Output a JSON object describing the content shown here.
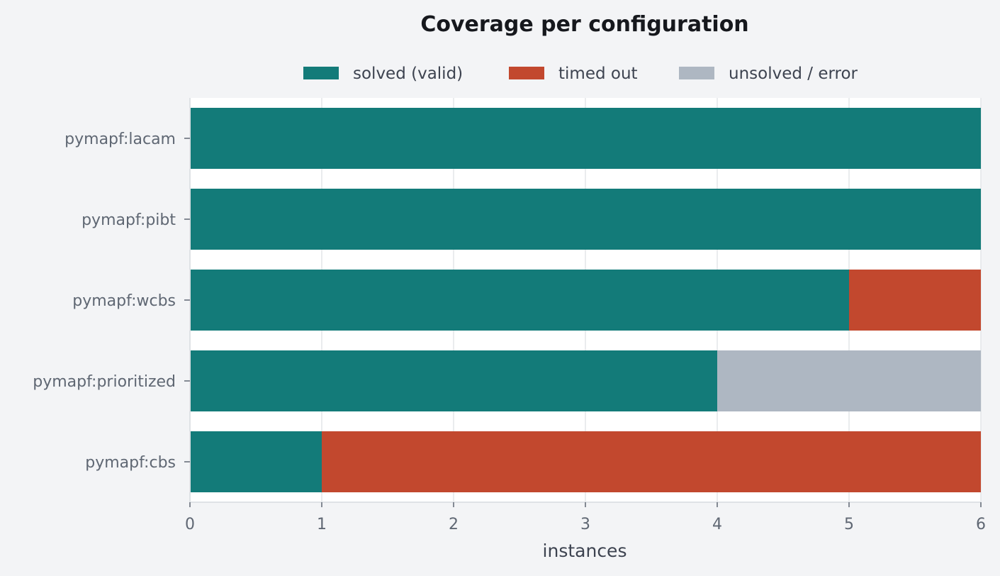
{
  "chart_data": {
    "type": "bar",
    "orientation": "horizontal",
    "stacked": true,
    "title": "Coverage per configuration",
    "xlabel": "instances",
    "ylabel": "",
    "xlim": [
      0,
      6
    ],
    "xticks": [
      "0",
      "1",
      "2",
      "3",
      "4",
      "5",
      "6"
    ],
    "categories": [
      "pymapf:lacam",
      "pymapf:pibt",
      "pymapf:wcbs",
      "pymapf:prioritized",
      "pymapf:cbs"
    ],
    "series": [
      {
        "name": "solved (valid)",
        "color": "#137b79",
        "values": [
          6,
          6,
          5,
          4,
          1
        ]
      },
      {
        "name": "timed out",
        "color": "#c2482e",
        "values": [
          0,
          0,
          1,
          0,
          5
        ]
      },
      {
        "name": "unsolved / error",
        "color": "#aeb7c2",
        "values": [
          0,
          0,
          0,
          2,
          0
        ]
      }
    ],
    "legend_position": "top-center",
    "grid": "vertical",
    "background_color": "#f3f4f6",
    "plot_background_color": "#ffffff"
  }
}
